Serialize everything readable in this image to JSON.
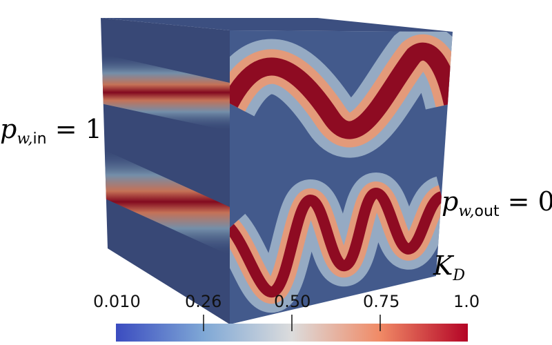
{
  "labels": {
    "inlet_var": "p",
    "inlet_sub_var": "w,",
    "inlet_sub_text": "in",
    "inlet_value": " = 1",
    "outlet_var": "p",
    "outlet_sub_var": "w,",
    "outlet_sub_text": "out",
    "outlet_value": " = 0",
    "perm_var": "K",
    "perm_sub": "D"
  },
  "colorbar": {
    "ticks": [
      "0.010",
      "0.26",
      "0.50",
      "0.75",
      "1.0"
    ],
    "tick_values": [
      0.01,
      0.26,
      0.5,
      0.75,
      1.0
    ],
    "min": 0.01,
    "max": 1.0,
    "colormap": [
      "#3b4cc0",
      "#a3c6e3",
      "#dddddd",
      "#f3a07f",
      "#b40426"
    ]
  },
  "colors": {
    "low": "#3c4f84",
    "high": "#8e0b22",
    "band": "#c33a35"
  }
}
